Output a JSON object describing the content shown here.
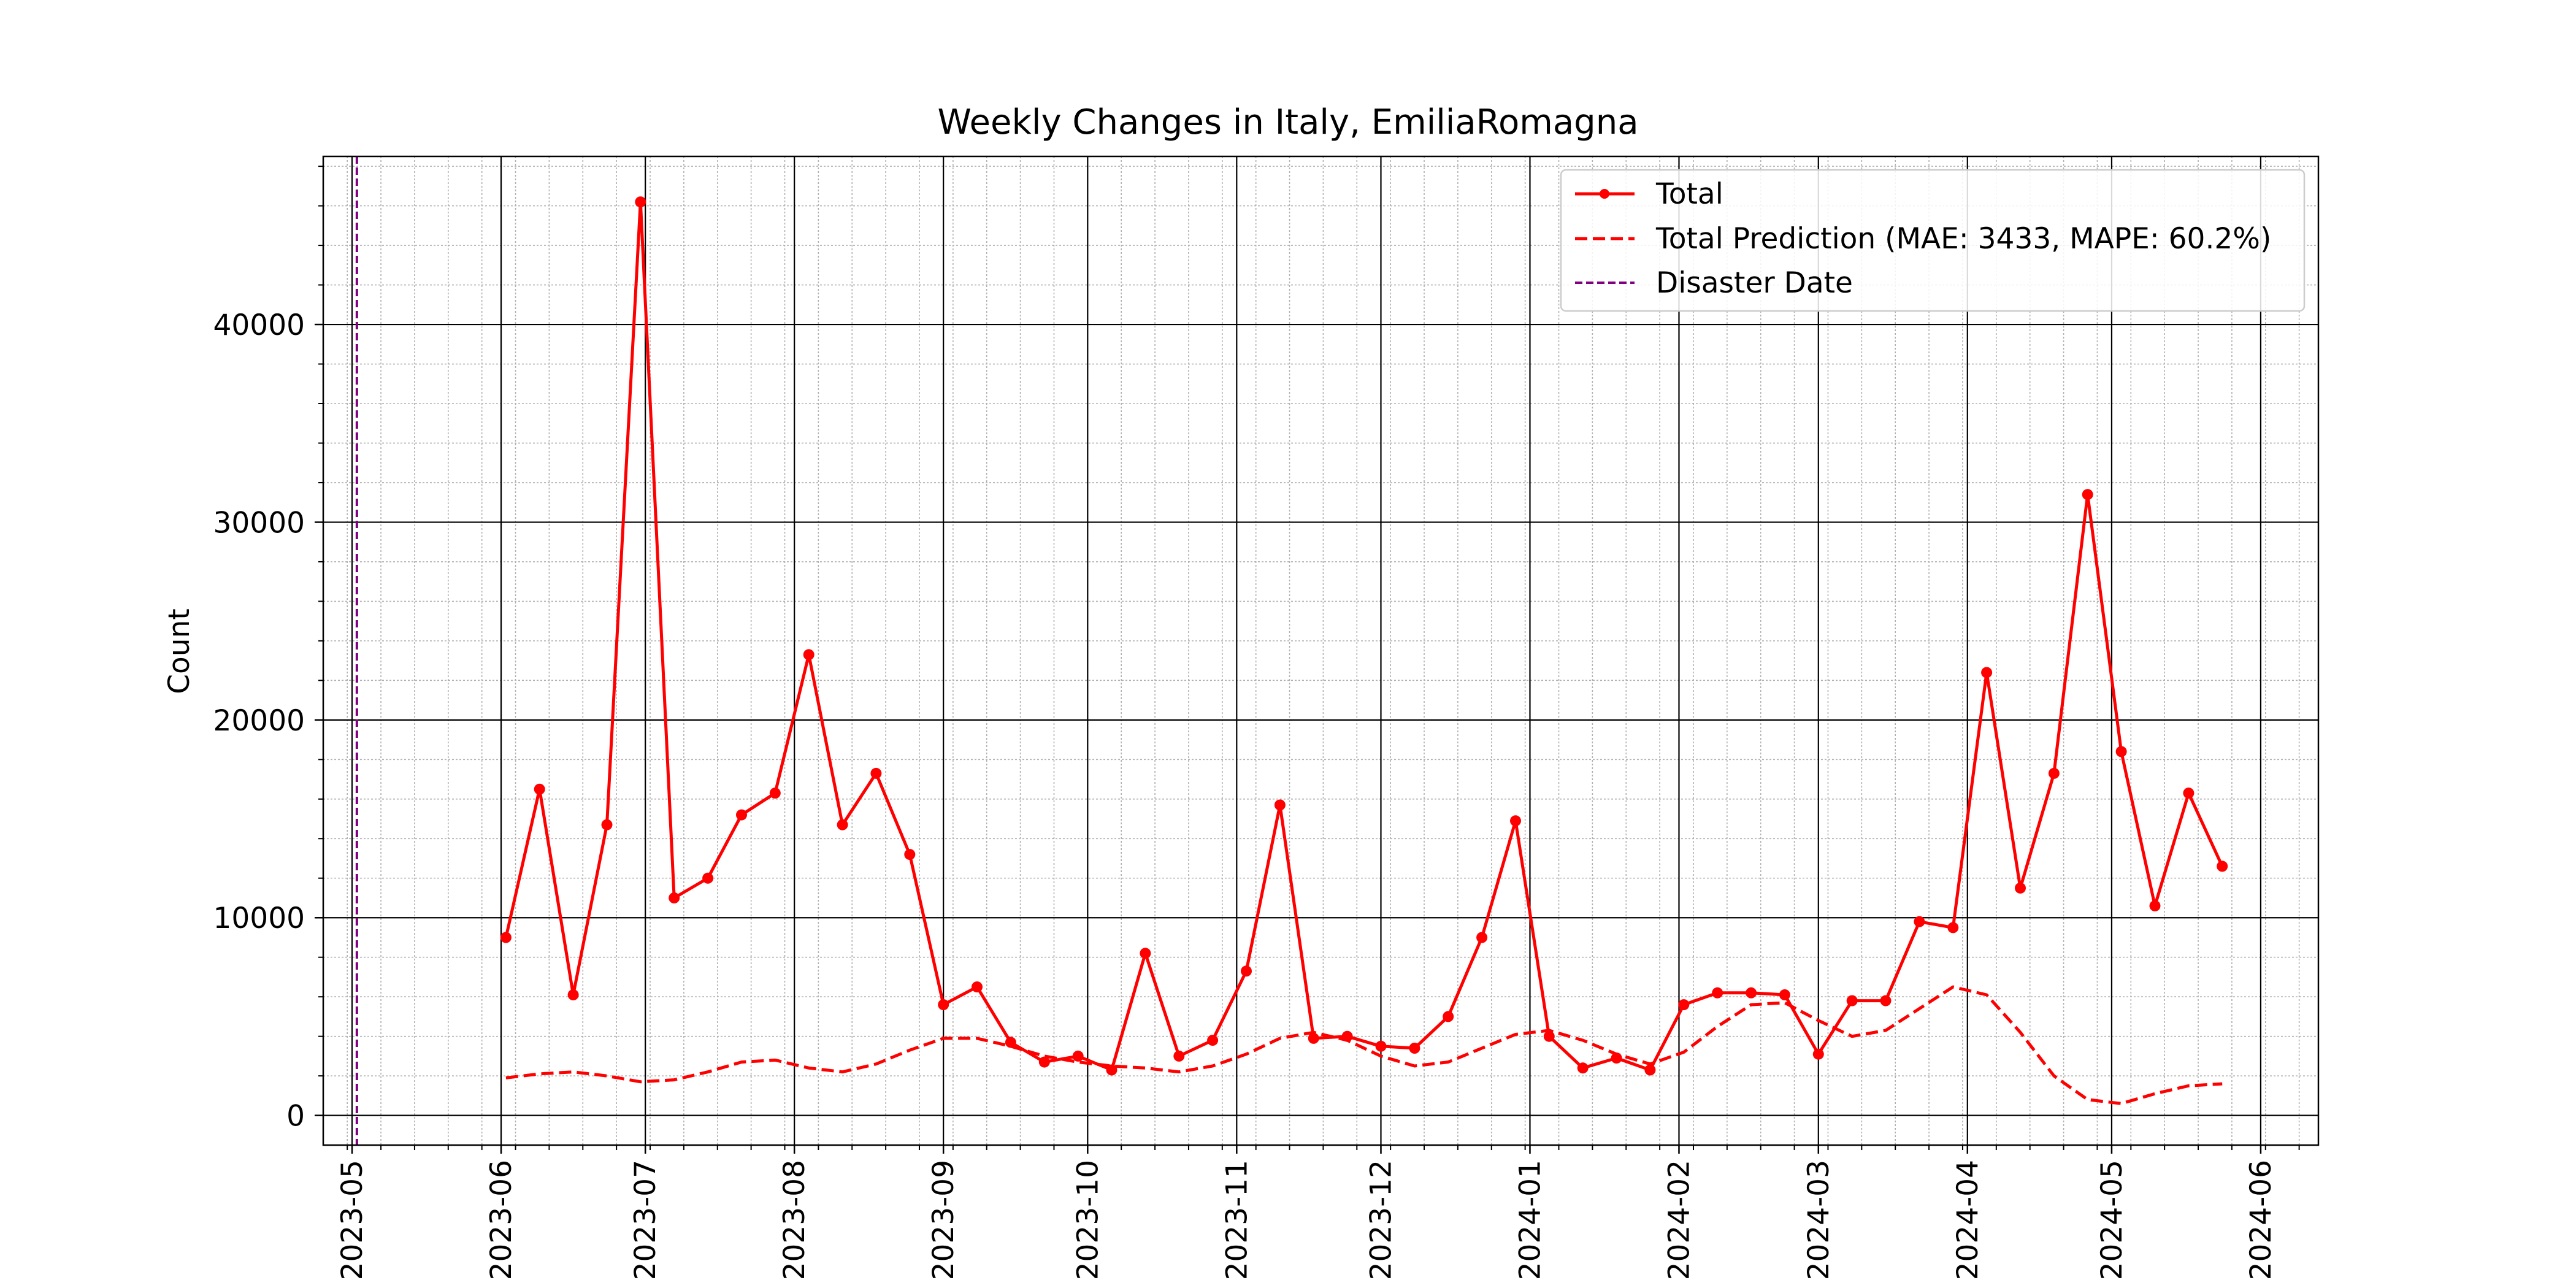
{
  "chart_data": {
    "type": "line",
    "title": "Weekly Changes in Italy, EmiliaRomagna",
    "xlabel": "",
    "ylabel": "Count",
    "x_tick_labels": [
      "2023-05",
      "2023-06",
      "2023-07",
      "2023-08",
      "2023-09",
      "2023-10",
      "2023-11",
      "2023-12",
      "2024-01",
      "2024-02",
      "2024-03",
      "2024-04",
      "2024-05",
      "2024-06"
    ],
    "y_tick_labels": [
      "0",
      "10000",
      "20000",
      "30000",
      "40000"
    ],
    "ylim": [
      -1500,
      48500
    ],
    "xlim": [
      "2023-04-25",
      "2024-06-13"
    ],
    "grid": true,
    "legend_position": "top-right",
    "series": [
      {
        "name": "Total",
        "style": "solid-with-markers",
        "color": "#ff0000",
        "points": [
          [
            "2023-06-02",
            9000
          ],
          [
            "2023-06-09",
            16500
          ],
          [
            "2023-06-16",
            6100
          ],
          [
            "2023-06-23",
            14700
          ],
          [
            "2023-06-30",
            46200
          ],
          [
            "2023-07-07",
            11000
          ],
          [
            "2023-07-14",
            12000
          ],
          [
            "2023-07-21",
            15200
          ],
          [
            "2023-07-28",
            16300
          ],
          [
            "2023-08-04",
            23300
          ],
          [
            "2023-08-11",
            14700
          ],
          [
            "2023-08-18",
            17300
          ],
          [
            "2023-08-25",
            13200
          ],
          [
            "2023-09-01",
            5600
          ],
          [
            "2023-09-08",
            6500
          ],
          [
            "2023-09-15",
            3700
          ],
          [
            "2023-09-22",
            2700
          ],
          [
            "2023-09-29",
            3000
          ],
          [
            "2023-10-06",
            2300
          ],
          [
            "2023-10-13",
            8200
          ],
          [
            "2023-10-20",
            3000
          ],
          [
            "2023-10-27",
            3800
          ],
          [
            "2023-11-03",
            7300
          ],
          [
            "2023-11-10",
            15700
          ],
          [
            "2023-11-17",
            3900
          ],
          [
            "2023-11-24",
            4000
          ],
          [
            "2023-12-01",
            3500
          ],
          [
            "2023-12-08",
            3400
          ],
          [
            "2023-12-15",
            5000
          ],
          [
            "2023-12-22",
            9000
          ],
          [
            "2023-12-29",
            14900
          ],
          [
            "2024-01-05",
            4000
          ],
          [
            "2024-01-12",
            2400
          ],
          [
            "2024-01-19",
            2900
          ],
          [
            "2024-01-26",
            2300
          ],
          [
            "2024-02-02",
            5600
          ],
          [
            "2024-02-09",
            6200
          ],
          [
            "2024-02-16",
            6200
          ],
          [
            "2024-02-23",
            6100
          ],
          [
            "2024-03-01",
            3100
          ],
          [
            "2024-03-08",
            5800
          ],
          [
            "2024-03-15",
            5800
          ],
          [
            "2024-03-22",
            9800
          ],
          [
            "2024-03-29",
            9500
          ],
          [
            "2024-04-05",
            22400
          ],
          [
            "2024-04-12",
            11500
          ],
          [
            "2024-04-19",
            17300
          ],
          [
            "2024-04-26",
            31400
          ],
          [
            "2024-05-03",
            18400
          ],
          [
            "2024-05-10",
            10600
          ],
          [
            "2024-05-17",
            16300
          ],
          [
            "2024-05-24",
            12600
          ]
        ]
      },
      {
        "name": "Total Prediction (MAE: 3433, MAPE: 60.2%)",
        "style": "dashed",
        "color": "#ff0000",
        "points": [
          [
            "2023-06-02",
            1900
          ],
          [
            "2023-06-09",
            2100
          ],
          [
            "2023-06-16",
            2200
          ],
          [
            "2023-06-23",
            2000
          ],
          [
            "2023-06-30",
            1700
          ],
          [
            "2023-07-07",
            1800
          ],
          [
            "2023-07-14",
            2200
          ],
          [
            "2023-07-21",
            2700
          ],
          [
            "2023-07-28",
            2800
          ],
          [
            "2023-08-04",
            2400
          ],
          [
            "2023-08-11",
            2200
          ],
          [
            "2023-08-18",
            2600
          ],
          [
            "2023-08-25",
            3300
          ],
          [
            "2023-09-01",
            3900
          ],
          [
            "2023-09-08",
            3900
          ],
          [
            "2023-09-15",
            3500
          ],
          [
            "2023-09-22",
            3000
          ],
          [
            "2023-09-29",
            2700
          ],
          [
            "2023-10-06",
            2500
          ],
          [
            "2023-10-13",
            2400
          ],
          [
            "2023-10-20",
            2200
          ],
          [
            "2023-10-27",
            2500
          ],
          [
            "2023-11-03",
            3100
          ],
          [
            "2023-11-10",
            3900
          ],
          [
            "2023-11-17",
            4200
          ],
          [
            "2023-11-24",
            3800
          ],
          [
            "2023-12-01",
            3000
          ],
          [
            "2023-12-08",
            2500
          ],
          [
            "2023-12-15",
            2700
          ],
          [
            "2023-12-22",
            3400
          ],
          [
            "2023-12-29",
            4100
          ],
          [
            "2024-01-05",
            4300
          ],
          [
            "2024-01-12",
            3800
          ],
          [
            "2024-01-19",
            3100
          ],
          [
            "2024-01-26",
            2600
          ],
          [
            "2024-02-02",
            3200
          ],
          [
            "2024-02-09",
            4500
          ],
          [
            "2024-02-16",
            5600
          ],
          [
            "2024-02-23",
            5700
          ],
          [
            "2024-03-01",
            4800
          ],
          [
            "2024-03-08",
            4000
          ],
          [
            "2024-03-15",
            4300
          ],
          [
            "2024-03-22",
            5400
          ],
          [
            "2024-03-29",
            6500
          ],
          [
            "2024-04-05",
            6100
          ],
          [
            "2024-04-12",
            4200
          ],
          [
            "2024-04-19",
            2000
          ],
          [
            "2024-04-26",
            800
          ],
          [
            "2024-05-03",
            600
          ],
          [
            "2024-05-10",
            1100
          ],
          [
            "2024-05-17",
            1500
          ],
          [
            "2024-05-24",
            1600
          ]
        ]
      },
      {
        "name": "Disaster Date",
        "style": "dashed-vertical",
        "color": "#800080",
        "date": "2023-05-02"
      }
    ]
  }
}
